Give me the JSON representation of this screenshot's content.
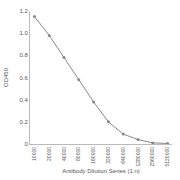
{
  "chart_data": {
    "type": "line",
    "x_label": "Antibody Dilution Series (1:n)",
    "y_label": "OD450",
    "categories": [
      "10000",
      "20000",
      "40000",
      "80000",
      "160000",
      "320000",
      "640000",
      "1280000",
      "2560000",
      "5120000"
    ],
    "values": [
      1.15,
      0.98,
      0.78,
      0.58,
      0.38,
      0.2,
      0.09,
      0.04,
      0.01,
      0.005
    ],
    "color": "#888888",
    "marker": "circle",
    "ylim": [
      0,
      1.2
    ],
    "yticks": [
      0,
      0.2,
      0.4,
      0.6,
      0.8,
      {
        "value": 1,
        "label": "1.0"
      },
      1.2
    ],
    "grid": false
  }
}
